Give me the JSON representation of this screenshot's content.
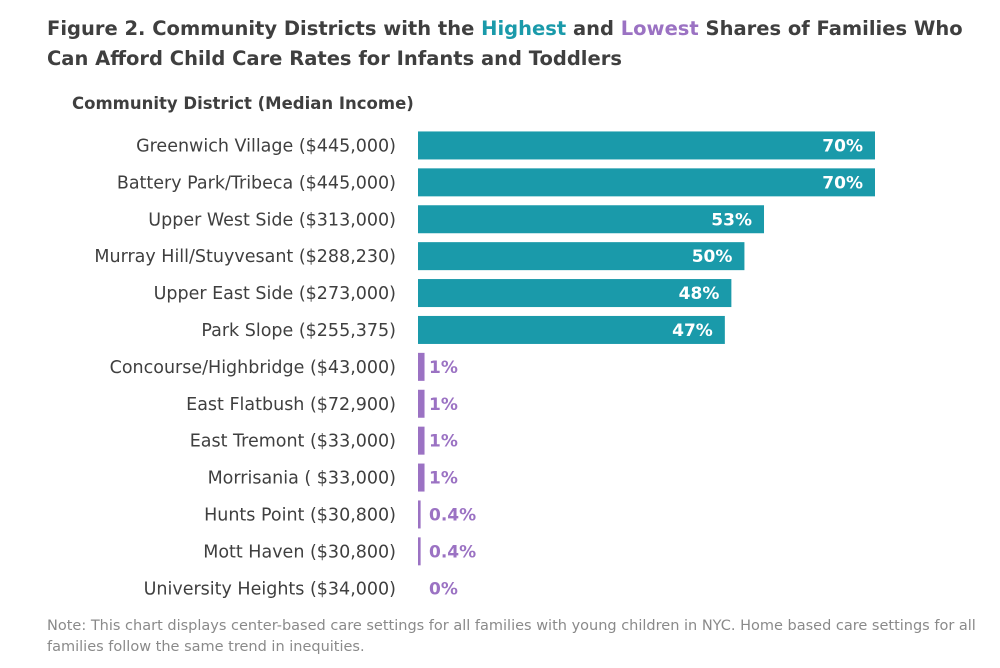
{
  "title": {
    "prefix": "Figure 2. Community Districts with the ",
    "highest": "Highest",
    "middle": " and ",
    "lowest": "Lowest",
    "suffix": " Shares of Families Who Can Afford Child Care Rates for Infants and Toddlers"
  },
  "note": "Note: This chart displays center-based care settings for all families with young children in NYC. Home based care settings for all families follow the same trend in inequities.",
  "colors": {
    "highest": "#1a9aaa",
    "lowest": "#9b72c3",
    "text": "#3f3f3f",
    "axis": "#888888"
  },
  "chart_data": {
    "type": "bar",
    "orientation": "horizontal",
    "ylabel": "Community District (Median Income)",
    "categories": [
      "Greenwich Village ($445,000)",
      "Battery Park/Tribeca ($445,000)",
      "Upper West Side ($313,000)",
      "Murray Hill/Stuyvesant ($288,230)",
      "Upper East Side ($273,000)",
      "Park Slope ($255,375)",
      "Concourse/Highbridge ($43,000)",
      "East Flatbush ($72,900)",
      "East Tremont ($33,000)",
      "Morrisania ( $33,000)",
      "Hunts Point ($30,800)",
      "Mott Haven  ($30,800)",
      "University Heights ($34,000)"
    ],
    "values": [
      70,
      70,
      53,
      50,
      48,
      47,
      1,
      1,
      1,
      1,
      0.4,
      0.4,
      0
    ],
    "labels": [
      "70%",
      "70%",
      "53%",
      "50%",
      "48%",
      "47%",
      "1%",
      "1%",
      "1%",
      "1%",
      "0.4%",
      "0.4%",
      "0%"
    ],
    "groups": [
      "highest",
      "highest",
      "highest",
      "highest",
      "highest",
      "highest",
      "lowest",
      "lowest",
      "lowest",
      "lowest",
      "lowest",
      "lowest",
      "lowest"
    ],
    "xlim": [
      0,
      70
    ],
    "grid": false,
    "legend": "none"
  }
}
